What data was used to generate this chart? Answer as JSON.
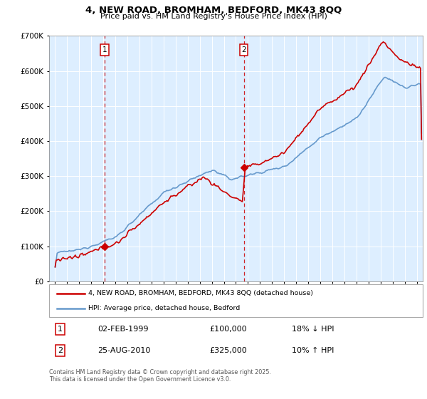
{
  "title": "4, NEW ROAD, BROMHAM, BEDFORD, MK43 8QQ",
  "subtitle": "Price paid vs. HM Land Registry's House Price Index (HPI)",
  "ylim": [
    0,
    700000
  ],
  "xlim_start": 1994.5,
  "xlim_end": 2025.5,
  "plot_bg_color": "#ddeeff",
  "hpi_color": "#6699cc",
  "price_color": "#cc0000",
  "dashed_line_color": "#cc0000",
  "marker1_date_x": 1999.09,
  "marker1_price": 100000,
  "marker2_date_x": 2010.65,
  "marker2_price": 325000,
  "legend_line1": "4, NEW ROAD, BROMHAM, BEDFORD, MK43 8QQ (detached house)",
  "legend_line2": "HPI: Average price, detached house, Bedford",
  "footnote": "Contains HM Land Registry data © Crown copyright and database right 2025.\nThis data is licensed under the Open Government Licence v3.0.",
  "xticks": [
    1995,
    1996,
    1997,
    1998,
    1999,
    2000,
    2001,
    2002,
    2003,
    2004,
    2005,
    2006,
    2007,
    2008,
    2009,
    2010,
    2011,
    2012,
    2013,
    2014,
    2015,
    2016,
    2017,
    2018,
    2019,
    2020,
    2021,
    2022,
    2023,
    2024,
    2025
  ]
}
